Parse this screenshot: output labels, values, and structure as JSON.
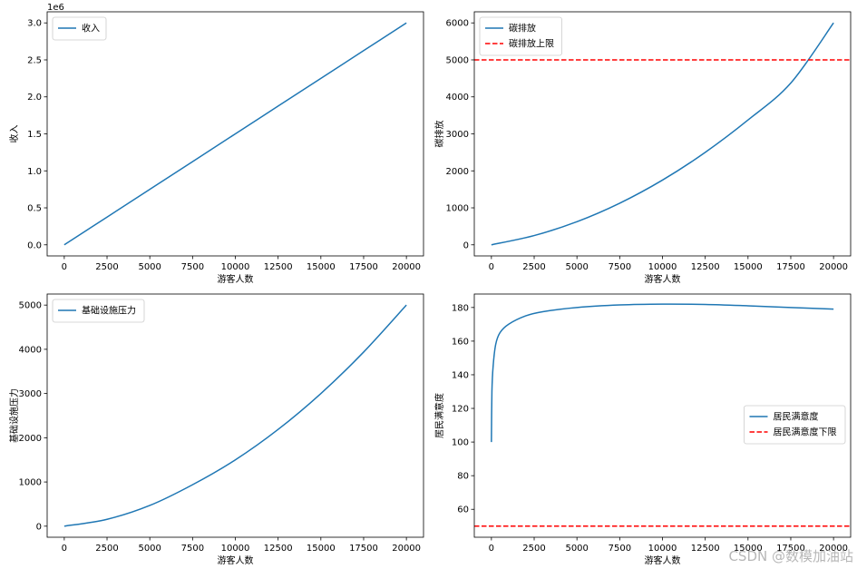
{
  "watermark": "CSDN @数模加油站",
  "colors": {
    "series": "#1f77b4",
    "limit": "#d62728",
    "axis": "#000000"
  },
  "chart_data": [
    {
      "type": "line",
      "xlabel": "游客人数",
      "ylabel": "收入",
      "y_offset_text": "1e6",
      "xlim": [
        -1000,
        21000
      ],
      "ylim": [
        -150000,
        3150000
      ],
      "xticks": [
        0,
        2500,
        5000,
        7500,
        10000,
        12500,
        15000,
        17500,
        20000
      ],
      "xtick_labels": [
        "0",
        "2500",
        "5000",
        "7500",
        "10000",
        "12500",
        "15000",
        "17500",
        "20000"
      ],
      "yticks": [
        0,
        500000,
        1000000,
        1500000,
        2000000,
        2500000,
        3000000
      ],
      "ytick_labels": [
        "0.0",
        "0.5",
        "1.0",
        "1.5",
        "2.0",
        "2.5",
        "3.0"
      ],
      "legend_position": "upper-left",
      "grid": false,
      "series": [
        {
          "name": "收入",
          "style": "solid",
          "color": "#1f77b4",
          "x": [
            0,
            2500,
            5000,
            7500,
            10000,
            12500,
            15000,
            17500,
            20000
          ],
          "y": [
            0,
            375000,
            750000,
            1125000,
            1500000,
            1875000,
            2250000,
            2625000,
            3000000
          ]
        }
      ]
    },
    {
      "type": "line",
      "xlabel": "游客人数",
      "ylabel": "碳排放",
      "xlim": [
        -1000,
        21000
      ],
      "ylim": [
        -300,
        6300
      ],
      "xticks": [
        0,
        2500,
        5000,
        7500,
        10000,
        12500,
        15000,
        17500,
        20000
      ],
      "xtick_labels": [
        "0",
        "2500",
        "5000",
        "7500",
        "10000",
        "12500",
        "15000",
        "17500",
        "20000"
      ],
      "yticks": [
        0,
        1000,
        2000,
        3000,
        4000,
        5000,
        6000
      ],
      "ytick_labels": [
        "0",
        "1000",
        "2000",
        "3000",
        "4000",
        "5000",
        "6000"
      ],
      "legend_position": "upper-left",
      "grid": false,
      "series": [
        {
          "name": "碳排放",
          "style": "solid",
          "color": "#1f77b4",
          "x": [
            0,
            2500,
            5000,
            7500,
            10000,
            12500,
            15000,
            17500,
            20000
          ],
          "y": [
            0,
            250,
            625,
            1125,
            1750,
            2500,
            3375,
            4375,
            6000
          ]
        },
        {
          "name": "碳排放上限",
          "style": "dashed",
          "color": "#ff0000",
          "x": [
            -1000,
            21000
          ],
          "y": [
            5000,
            5000
          ]
        }
      ]
    },
    {
      "type": "line",
      "xlabel": "游客人数",
      "ylabel": "基础设施压力",
      "xlim": [
        -1000,
        21000
      ],
      "ylim": [
        -250,
        5250
      ],
      "xticks": [
        0,
        2500,
        5000,
        7500,
        10000,
        12500,
        15000,
        17500,
        20000
      ],
      "xtick_labels": [
        "0",
        "2500",
        "5000",
        "7500",
        "10000",
        "12500",
        "15000",
        "17500",
        "20000"
      ],
      "yticks": [
        0,
        1000,
        2000,
        3000,
        4000,
        5000
      ],
      "ytick_labels": [
        "0",
        "1000",
        "2000",
        "3000",
        "4000",
        "5000"
      ],
      "legend_position": "upper-left",
      "grid": false,
      "series": [
        {
          "name": "基础设施压力",
          "style": "solid",
          "color": "#1f77b4",
          "x": [
            0,
            2500,
            5000,
            7500,
            10000,
            12500,
            15000,
            17500,
            20000
          ],
          "y": [
            0,
            156,
            469,
            938,
            1500,
            2188,
            3000,
            3938,
            5000
          ]
        }
      ]
    },
    {
      "type": "line",
      "xlabel": "游客人数",
      "ylabel": "居民满意度",
      "xlim": [
        -1000,
        21000
      ],
      "ylim": [
        43.4,
        188
      ],
      "xticks": [
        0,
        2500,
        5000,
        7500,
        10000,
        12500,
        15000,
        17500,
        20000
      ],
      "xtick_labels": [
        "0",
        "2500",
        "5000",
        "7500",
        "10000",
        "12500",
        "15000",
        "17500",
        "20000"
      ],
      "yticks": [
        60,
        80,
        100,
        120,
        140,
        160,
        180
      ],
      "ytick_labels": [
        "60",
        "80",
        "100",
        "120",
        "140",
        "160",
        "180"
      ],
      "legend_position": "center-right",
      "grid": false,
      "series": [
        {
          "name": "居民满意度",
          "style": "solid",
          "color": "#1f77b4",
          "x": [
            0,
            30,
            100,
            250,
            500,
            1000,
            2000,
            3000,
            5000,
            7500,
            10000,
            12500,
            15000,
            17500,
            20000
          ],
          "y": [
            100,
            130,
            145,
            158,
            165,
            170,
            175,
            177.5,
            180,
            181.5,
            182,
            181.8,
            181,
            180,
            179
          ]
        },
        {
          "name": "居民满意度下限",
          "style": "dashed",
          "color": "#ff0000",
          "x": [
            -1000,
            21000
          ],
          "y": [
            50,
            50
          ]
        }
      ]
    }
  ]
}
